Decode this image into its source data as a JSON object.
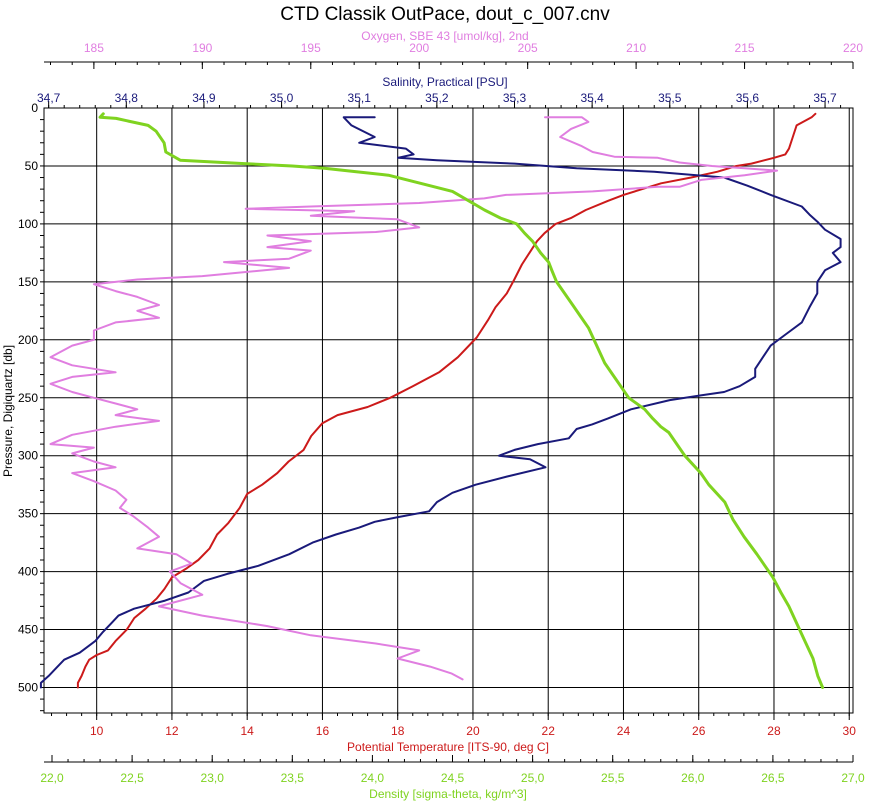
{
  "chart_data": {
    "type": "line",
    "title": "CTD Classik OutPace, dout_c_007.cnv",
    "grid": true,
    "y_axis": {
      "label": "Pressure, Digiquartz [db]",
      "range": [
        0,
        522
      ],
      "ticks": [
        0,
        50,
        100,
        150,
        200,
        250,
        300,
        350,
        400,
        450,
        500
      ],
      "inverted": true,
      "color": "#000000"
    },
    "top_axes": [
      {
        "key": "oxygen",
        "label": "Oxygen, SBE 43 [umol/kg], 2nd",
        "color": "#e07ee0",
        "range": [
          182.7,
          220
        ],
        "ticks": [
          185,
          190,
          195,
          200,
          205,
          210,
          215,
          220
        ],
        "tick_labels": [
          "185",
          "190",
          "195",
          "200",
          "205",
          "210",
          "215",
          "220"
        ]
      },
      {
        "key": "salinity",
        "label": "Salinity, Practical [PSU]",
        "color": "#1a1a7a",
        "range": [
          34.694,
          35.736
        ],
        "ticks": [
          34.7,
          34.8,
          34.9,
          35.0,
          35.1,
          35.2,
          35.3,
          35.4,
          35.5,
          35.6,
          35.7
        ],
        "tick_labels": [
          "34,7",
          "34,8",
          "34,9",
          "35,0",
          "35,1",
          "35,2",
          "35,3",
          "35,4",
          "35,5",
          "35,6",
          "35,7"
        ]
      }
    ],
    "bottom_axes": [
      {
        "key": "temperature",
        "label": "Potential Temperature [ITS-90, deg C]",
        "color": "#cc1a1a",
        "range": [
          8.6,
          30.1
        ],
        "ticks": [
          10,
          12,
          14,
          16,
          18,
          20,
          22,
          24,
          26,
          28,
          30
        ],
        "tick_labels": [
          "10",
          "12",
          "14",
          "16",
          "18",
          "20",
          "22",
          "24",
          "26",
          "28",
          "30"
        ]
      },
      {
        "key": "density",
        "label": "Density [sigma-theta, kg/m^3]",
        "color": "#7fd320",
        "range": [
          21.95,
          27.0
        ],
        "ticks": [
          22.0,
          22.5,
          23.0,
          23.5,
          24.0,
          24.5,
          25.0,
          25.5,
          26.0,
          26.5,
          27.0
        ],
        "tick_labels": [
          "22,0",
          "22,5",
          "23,0",
          "23,5",
          "24,0",
          "24,5",
          "25,0",
          "25,5",
          "26,0",
          "26,5",
          "27,0"
        ]
      }
    ],
    "series": [
      {
        "name": "Potential Temperature",
        "axis": "temperature",
        "color": "#cc1a1a",
        "points": [
          [
            29.1,
            5
          ],
          [
            29.0,
            8
          ],
          [
            28.6,
            15
          ],
          [
            28.5,
            25
          ],
          [
            28.4,
            35
          ],
          [
            28.3,
            40
          ],
          [
            28.0,
            43
          ],
          [
            27.4,
            48
          ],
          [
            27.0,
            50
          ],
          [
            26.5,
            55
          ],
          [
            25.8,
            60
          ],
          [
            25.0,
            65
          ],
          [
            24.5,
            70
          ],
          [
            24.0,
            75
          ],
          [
            23.6,
            80
          ],
          [
            23.0,
            88
          ],
          [
            22.6,
            95
          ],
          [
            22.2,
            100
          ],
          [
            21.9,
            108
          ],
          [
            21.7,
            115
          ],
          [
            21.5,
            125
          ],
          [
            21.3,
            135
          ],
          [
            21.1,
            148
          ],
          [
            20.9,
            160
          ],
          [
            20.6,
            172
          ],
          [
            20.4,
            183
          ],
          [
            20.1,
            198
          ],
          [
            19.6,
            215
          ],
          [
            19.1,
            228
          ],
          [
            18.4,
            240
          ],
          [
            17.8,
            250
          ],
          [
            17.2,
            258
          ],
          [
            16.4,
            265
          ],
          [
            16.0,
            272
          ],
          [
            15.7,
            283
          ],
          [
            15.5,
            295
          ],
          [
            15.1,
            305
          ],
          [
            14.8,
            315
          ],
          [
            14.4,
            325
          ],
          [
            14.0,
            333
          ],
          [
            13.8,
            345
          ],
          [
            13.5,
            358
          ],
          [
            13.2,
            368
          ],
          [
            13.0,
            380
          ],
          [
            12.7,
            390
          ],
          [
            12.4,
            397
          ],
          [
            12.0,
            405
          ],
          [
            11.8,
            415
          ],
          [
            11.6,
            423
          ],
          [
            11.3,
            432
          ],
          [
            11.0,
            440
          ],
          [
            10.8,
            450
          ],
          [
            10.5,
            460
          ],
          [
            10.3,
            468
          ],
          [
            10.0,
            472
          ],
          [
            9.8,
            476
          ],
          [
            9.7,
            482
          ],
          [
            9.6,
            490
          ],
          [
            9.5,
            496
          ],
          [
            9.5,
            500
          ]
        ]
      },
      {
        "name": "Salinity",
        "axis": "salinity",
        "color": "#1a1a7a",
        "points": [
          [
            35.12,
            8
          ],
          [
            35.08,
            8
          ],
          [
            35.09,
            15
          ],
          [
            35.12,
            25
          ],
          [
            35.1,
            30
          ],
          [
            35.16,
            35
          ],
          [
            35.17,
            40
          ],
          [
            35.15,
            43
          ],
          [
            35.2,
            45
          ],
          [
            35.3,
            48
          ],
          [
            35.38,
            52
          ],
          [
            35.48,
            55
          ],
          [
            35.57,
            60
          ],
          [
            35.6,
            67
          ],
          [
            35.63,
            75
          ],
          [
            35.67,
            85
          ],
          [
            35.68,
            92
          ],
          [
            35.69,
            98
          ],
          [
            35.7,
            105
          ],
          [
            35.72,
            113
          ],
          [
            35.72,
            120
          ],
          [
            35.71,
            125
          ],
          [
            35.72,
            133
          ],
          [
            35.7,
            140
          ],
          [
            35.69,
            150
          ],
          [
            35.69,
            160
          ],
          [
            35.68,
            172
          ],
          [
            35.67,
            185
          ],
          [
            35.65,
            195
          ],
          [
            35.63,
            205
          ],
          [
            35.62,
            215
          ],
          [
            35.61,
            225
          ],
          [
            35.61,
            232
          ],
          [
            35.59,
            240
          ],
          [
            35.57,
            245
          ],
          [
            35.54,
            248
          ],
          [
            35.5,
            252
          ],
          [
            35.45,
            260
          ],
          [
            35.42,
            268
          ],
          [
            35.4,
            273
          ],
          [
            35.38,
            277
          ],
          [
            35.37,
            285
          ],
          [
            35.33,
            290
          ],
          [
            35.3,
            295
          ],
          [
            35.28,
            300
          ],
          [
            35.32,
            303
          ],
          [
            35.34,
            310
          ],
          [
            35.29,
            318
          ],
          [
            35.25,
            325
          ],
          [
            35.22,
            332
          ],
          [
            35.2,
            340
          ],
          [
            35.19,
            348
          ],
          [
            35.15,
            353
          ],
          [
            35.12,
            357
          ],
          [
            35.1,
            362
          ],
          [
            35.07,
            368
          ],
          [
            35.04,
            375
          ],
          [
            35.01,
            385
          ],
          [
            34.97,
            395
          ],
          [
            34.93,
            402
          ],
          [
            34.9,
            408
          ],
          [
            34.88,
            418
          ],
          [
            34.85,
            425
          ],
          [
            34.81,
            432
          ],
          [
            34.79,
            438
          ],
          [
            34.78,
            445
          ],
          [
            34.77,
            452
          ],
          [
            34.76,
            460
          ],
          [
            34.74,
            470
          ],
          [
            34.72,
            476
          ],
          [
            34.71,
            483
          ],
          [
            34.7,
            490
          ],
          [
            34.69,
            496
          ],
          [
            34.69,
            500
          ]
        ]
      },
      {
        "name": "Oxygen",
        "axis": "oxygen",
        "color": "#e07ee0",
        "points": [
          [
            205.8,
            8
          ],
          [
            207.5,
            8
          ],
          [
            207.8,
            12
          ],
          [
            207.0,
            18
          ],
          [
            206.5,
            25
          ],
          [
            207.5,
            33
          ],
          [
            208.0,
            38
          ],
          [
            209.0,
            42
          ],
          [
            211.0,
            43
          ],
          [
            212.0,
            47
          ],
          [
            213.5,
            50
          ],
          [
            215.0,
            52
          ],
          [
            216.5,
            54
          ],
          [
            215.0,
            58
          ],
          [
            213.0,
            62
          ],
          [
            212.0,
            68
          ],
          [
            211.0,
            68
          ],
          [
            208.0,
            72
          ],
          [
            204.0,
            75
          ],
          [
            203.0,
            78
          ],
          [
            200.0,
            82
          ],
          [
            195.0,
            85
          ],
          [
            192.0,
            87
          ],
          [
            197.0,
            89
          ],
          [
            195.0,
            93
          ],
          [
            199.0,
            96
          ],
          [
            200.0,
            103
          ],
          [
            198.0,
            107
          ],
          [
            193.0,
            110
          ],
          [
            195.0,
            115
          ],
          [
            193.0,
            120
          ],
          [
            195.0,
            123
          ],
          [
            194.0,
            130
          ],
          [
            191.0,
            133
          ],
          [
            194.0,
            138
          ],
          [
            190.0,
            145
          ],
          [
            187.0,
            148
          ],
          [
            185.0,
            152
          ],
          [
            186.0,
            158
          ],
          [
            187.0,
            163
          ],
          [
            188.0,
            170
          ],
          [
            187.0,
            175
          ],
          [
            188.0,
            181
          ],
          [
            186.0,
            185
          ],
          [
            185.0,
            192
          ],
          [
            185.0,
            200
          ],
          [
            184.0,
            205
          ],
          [
            183.0,
            215
          ],
          [
            184.0,
            222
          ],
          [
            186.0,
            228
          ],
          [
            184.0,
            232
          ],
          [
            183.0,
            238
          ],
          [
            184.0,
            245
          ],
          [
            185.0,
            250
          ],
          [
            186.0,
            255
          ],
          [
            187.0,
            260
          ],
          [
            186.0,
            265
          ],
          [
            188.0,
            270
          ],
          [
            186.0,
            275
          ],
          [
            184.0,
            282
          ],
          [
            183.0,
            290
          ],
          [
            185.0,
            293
          ],
          [
            184.0,
            298
          ],
          [
            185.0,
            305
          ],
          [
            186.0,
            310
          ],
          [
            184.0,
            315
          ],
          [
            185.0,
            322
          ],
          [
            186.0,
            330
          ],
          [
            186.5,
            338
          ],
          [
            186.2,
            345
          ],
          [
            186.8,
            352
          ],
          [
            187.5,
            362
          ],
          [
            188.0,
            370
          ],
          [
            187.0,
            380
          ],
          [
            188.8,
            385
          ],
          [
            189.5,
            393
          ],
          [
            188.5,
            400
          ],
          [
            189.0,
            410
          ],
          [
            190.0,
            420
          ],
          [
            188.0,
            430
          ],
          [
            190.0,
            438
          ],
          [
            193.0,
            447
          ],
          [
            195.0,
            455
          ],
          [
            198.0,
            462
          ],
          [
            200.0,
            468
          ],
          [
            199.0,
            475
          ],
          [
            200.5,
            482
          ],
          [
            201.5,
            488
          ],
          [
            202.0,
            493
          ]
        ]
      },
      {
        "name": "Density",
        "axis": "density",
        "color": "#7fd320",
        "points": [
          [
            22.32,
            5
          ],
          [
            22.3,
            8
          ],
          [
            22.4,
            9
          ],
          [
            22.6,
            15
          ],
          [
            22.65,
            20
          ],
          [
            22.7,
            30
          ],
          [
            22.71,
            38
          ],
          [
            22.8,
            45
          ],
          [
            23.2,
            48
          ],
          [
            23.5,
            50
          ],
          [
            23.7,
            52
          ],
          [
            23.9,
            55
          ],
          [
            24.1,
            58
          ],
          [
            24.3,
            65
          ],
          [
            24.5,
            72
          ],
          [
            24.6,
            80
          ],
          [
            24.7,
            88
          ],
          [
            24.8,
            95
          ],
          [
            24.9,
            100
          ],
          [
            24.95,
            108
          ],
          [
            25.0,
            115
          ],
          [
            25.05,
            125
          ],
          [
            25.1,
            133
          ],
          [
            25.12,
            140
          ],
          [
            25.15,
            150
          ],
          [
            25.2,
            160
          ],
          [
            25.25,
            170
          ],
          [
            25.3,
            180
          ],
          [
            25.35,
            190
          ],
          [
            25.4,
            205
          ],
          [
            25.45,
            220
          ],
          [
            25.5,
            230
          ],
          [
            25.55,
            240
          ],
          [
            25.6,
            250
          ],
          [
            25.7,
            260
          ],
          [
            25.75,
            268
          ],
          [
            25.8,
            275
          ],
          [
            25.85,
            280
          ],
          [
            25.9,
            290
          ],
          [
            25.95,
            300
          ],
          [
            26.05,
            315
          ],
          [
            26.1,
            325
          ],
          [
            26.2,
            340
          ],
          [
            26.25,
            355
          ],
          [
            26.32,
            370
          ],
          [
            26.4,
            385
          ],
          [
            26.45,
            395
          ],
          [
            26.5,
            405
          ],
          [
            26.55,
            418
          ],
          [
            26.6,
            430
          ],
          [
            26.65,
            445
          ],
          [
            26.7,
            460
          ],
          [
            26.75,
            475
          ],
          [
            26.78,
            490
          ],
          [
            26.81,
            500
          ]
        ]
      }
    ]
  }
}
